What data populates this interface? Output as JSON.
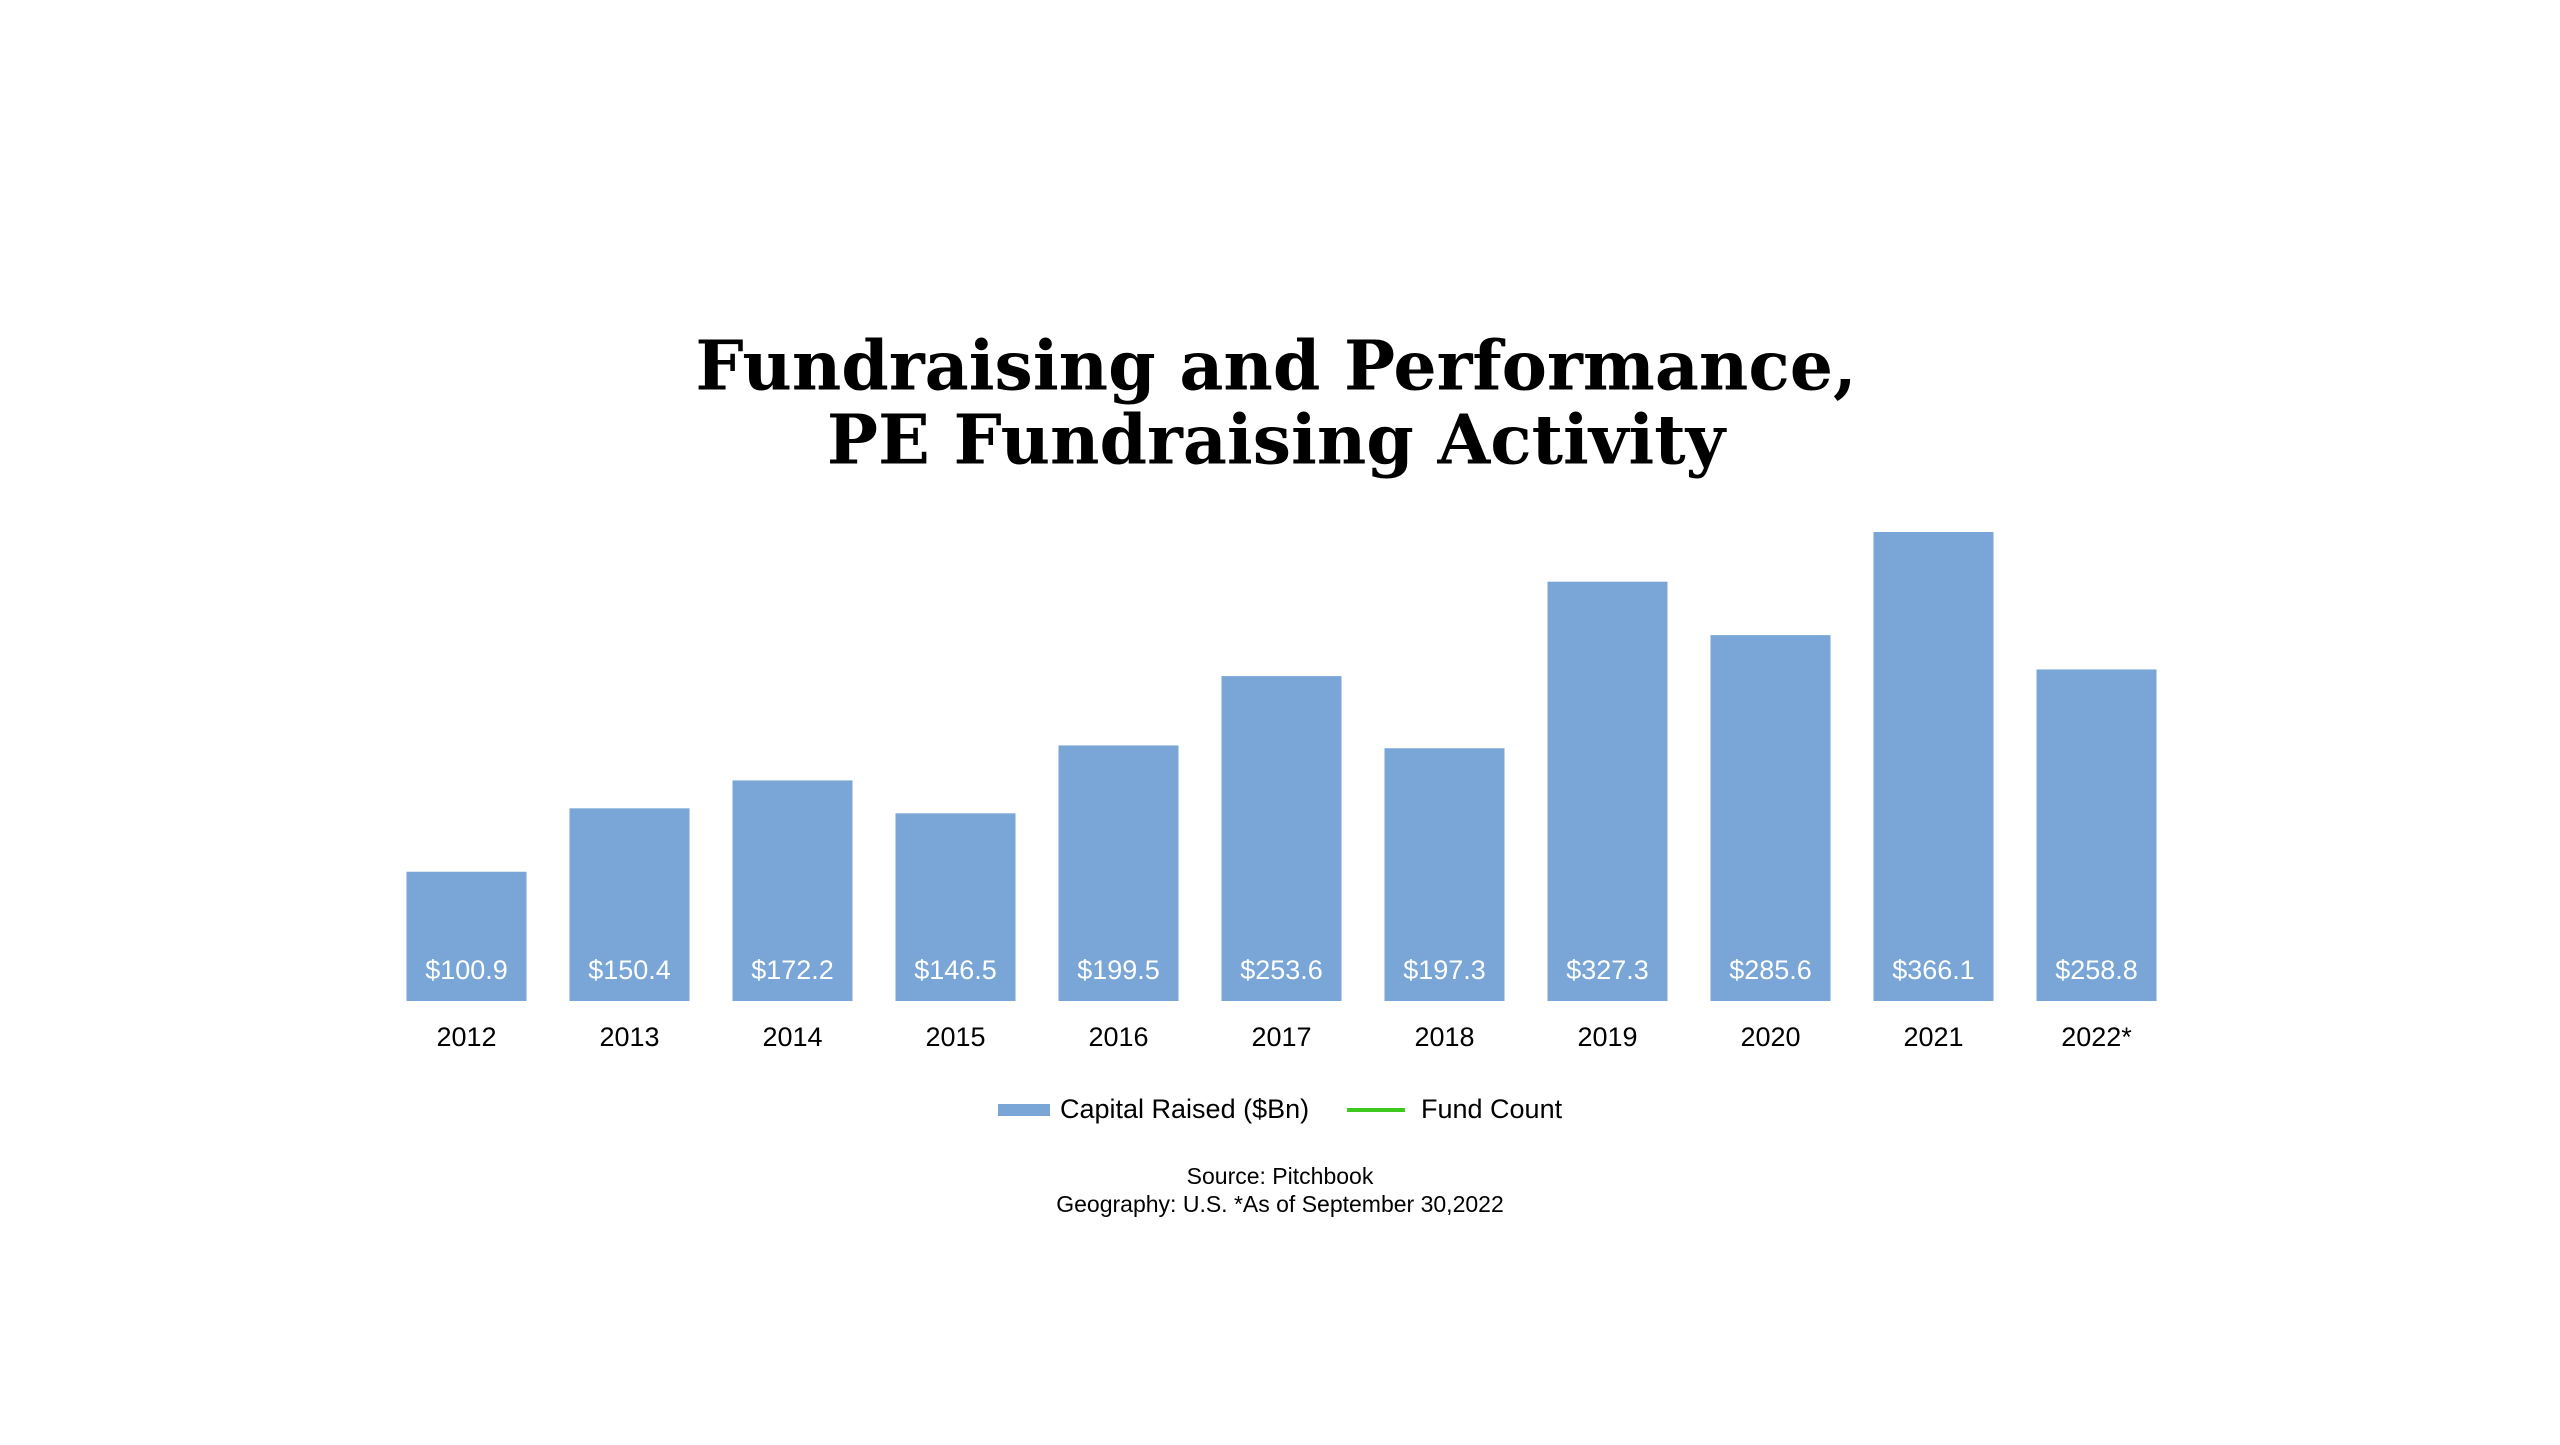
{
  "chart_data": {
    "type": "bar",
    "title": [
      "Fundraising and Performance,",
      "PE Fundraising Activity"
    ],
    "categories": [
      "2012",
      "2013",
      "2014",
      "2015",
      "2016",
      "2017",
      "2018",
      "2019",
      "2020",
      "2021",
      "2022*"
    ],
    "series": [
      {
        "name": "Capital Raised ($Bn)",
        "type": "bar",
        "color": "#79a6d6",
        "values": [
          100.9,
          150.4,
          172.2,
          146.5,
          199.5,
          253.6,
          197.3,
          327.3,
          285.6,
          366.1,
          258.8
        ],
        "value_labels": [
          "$100.9",
          "$150.4",
          "$172.2",
          "$146.5",
          "$199.5",
          "$253.6",
          "$197.3",
          "$327.3",
          "$285.6",
          "$366.1",
          "$258.8"
        ]
      },
      {
        "name": "Fund Count",
        "type": "line",
        "color": "#3ec91e",
        "values": [
          null,
          null,
          null,
          null,
          null,
          null,
          null,
          null,
          null,
          null,
          null
        ]
      }
    ],
    "legend": "bottom",
    "source": "Source: Pitchbook",
    "note": "Geography: U.S. *As of September 30,2022"
  }
}
